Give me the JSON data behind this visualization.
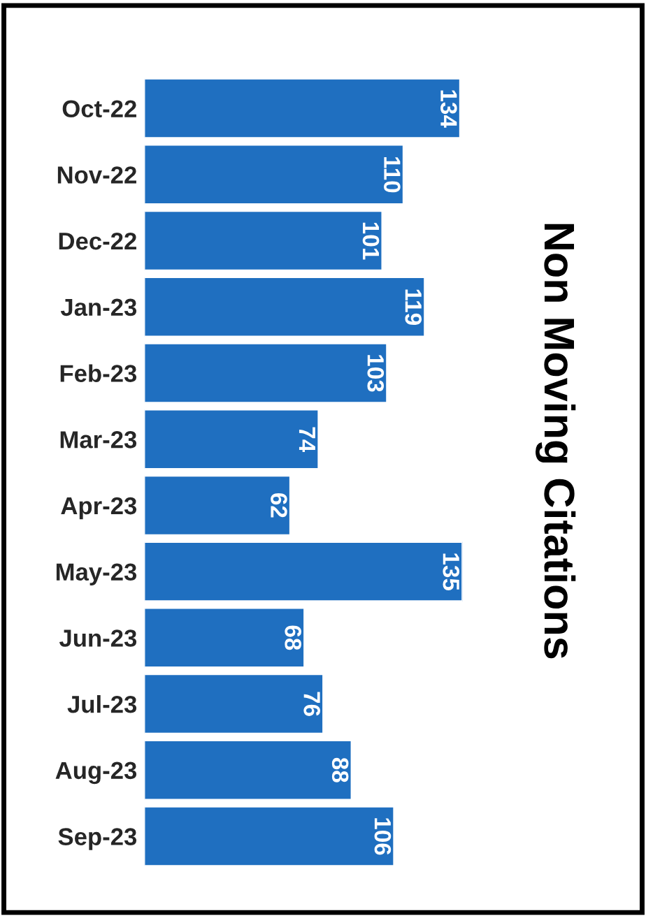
{
  "chart_data": {
    "type": "bar",
    "orientation": "horizontal",
    "title": "Non Moving Citations",
    "categories": [
      "Oct-22",
      "Nov-22",
      "Dec-22",
      "Jan-23",
      "Feb-23",
      "Mar-23",
      "Apr-23",
      "May-23",
      "Jun-23",
      "Jul-23",
      "Aug-23",
      "Sep-23"
    ],
    "values": [
      134,
      110,
      101,
      119,
      103,
      74,
      62,
      135,
      68,
      76,
      88,
      106
    ],
    "color": "#1f6fc0",
    "data_labels": true,
    "tick_labels": "y",
    "grid": false,
    "legend": false
  }
}
